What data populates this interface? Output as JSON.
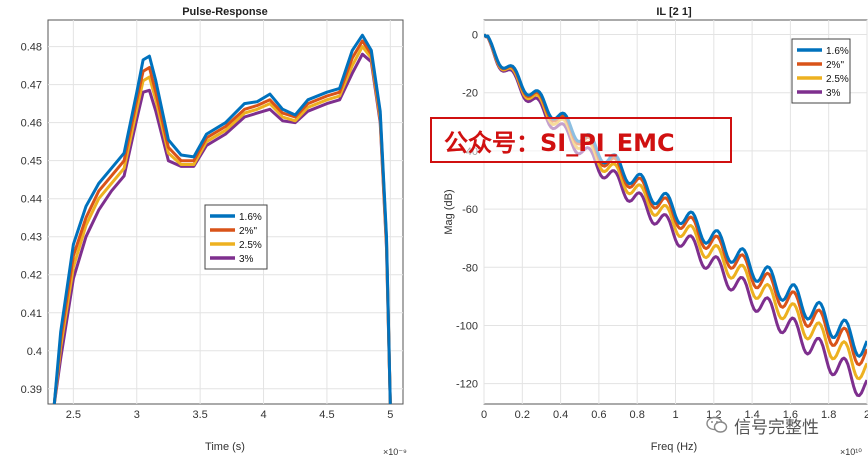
{
  "chart_data": [
    {
      "type": "line",
      "title": "Pulse-Response",
      "xlabel": "Time (s)",
      "ylabel": "",
      "x_exponent": "×10⁻⁹",
      "xlim": [
        2.3,
        5.1
      ],
      "ylim": [
        0.386,
        0.487
      ],
      "xticks": [
        "2.5",
        "3",
        "3.5",
        "4",
        "4.5",
        "5"
      ],
      "yticks": [
        "0.39",
        "0.4",
        "0.41",
        "0.42",
        "0.43",
        "0.44",
        "0.45",
        "0.46",
        "0.47",
        "0.48"
      ],
      "grid": true,
      "legend_position": "center",
      "series": [
        {
          "name": "1.6%",
          "color": "#0072bd",
          "x": [
            2.35,
            2.4,
            2.5,
            2.6,
            2.7,
            2.8,
            2.9,
            3.0,
            3.05,
            3.1,
            3.15,
            3.25,
            3.35,
            3.45,
            3.55,
            3.7,
            3.85,
            3.95,
            4.05,
            4.15,
            4.25,
            4.35,
            4.5,
            4.6,
            4.7,
            4.78,
            4.85,
            4.92,
            4.97,
            5.0
          ],
          "y": [
            0.386,
            0.405,
            0.428,
            0.438,
            0.444,
            0.448,
            0.452,
            0.468,
            0.4765,
            0.4775,
            0.471,
            0.4555,
            0.4515,
            0.451,
            0.457,
            0.46,
            0.465,
            0.4655,
            0.4675,
            0.4635,
            0.462,
            0.466,
            0.468,
            0.469,
            0.479,
            0.483,
            0.479,
            0.463,
            0.43,
            0.386
          ]
        },
        {
          "name": "2%\"",
          "color": "#d95319",
          "x": [
            2.35,
            2.4,
            2.5,
            2.6,
            2.7,
            2.8,
            2.9,
            3.0,
            3.05,
            3.1,
            3.15,
            3.25,
            3.35,
            3.45,
            3.55,
            3.7,
            3.85,
            3.95,
            4.05,
            4.15,
            4.25,
            4.35,
            4.5,
            4.6,
            4.7,
            4.78,
            4.85,
            4.92,
            4.97,
            5.0
          ],
          "y": [
            0.386,
            0.403,
            0.425,
            0.435,
            0.442,
            0.446,
            0.45,
            0.466,
            0.4735,
            0.4745,
            0.468,
            0.4535,
            0.45,
            0.45,
            0.456,
            0.459,
            0.4635,
            0.4645,
            0.466,
            0.4625,
            0.4615,
            0.465,
            0.467,
            0.468,
            0.477,
            0.4815,
            0.478,
            0.462,
            0.429,
            0.386
          ]
        },
        {
          "name": "2.5%",
          "color": "#edb120",
          "x": [
            2.35,
            2.4,
            2.5,
            2.6,
            2.7,
            2.8,
            2.9,
            3.0,
            3.05,
            3.1,
            3.15,
            3.25,
            3.35,
            3.45,
            3.55,
            3.7,
            3.85,
            3.95,
            4.05,
            4.15,
            4.25,
            4.35,
            4.5,
            4.6,
            4.7,
            4.78,
            4.85,
            4.92,
            4.97,
            5.0
          ],
          "y": [
            0.386,
            0.401,
            0.422,
            0.433,
            0.44,
            0.444,
            0.448,
            0.4635,
            0.471,
            0.472,
            0.466,
            0.452,
            0.449,
            0.449,
            0.455,
            0.458,
            0.4625,
            0.4635,
            0.465,
            0.4615,
            0.4605,
            0.464,
            0.466,
            0.467,
            0.475,
            0.48,
            0.477,
            0.461,
            0.428,
            0.386
          ]
        },
        {
          "name": "3%",
          "color": "#7e2f8e",
          "x": [
            2.35,
            2.4,
            2.5,
            2.6,
            2.7,
            2.8,
            2.9,
            3.0,
            3.05,
            3.1,
            3.15,
            3.25,
            3.35,
            3.45,
            3.55,
            3.7,
            3.85,
            3.95,
            4.05,
            4.15,
            4.25,
            4.35,
            4.5,
            4.6,
            4.7,
            4.78,
            4.85,
            4.92,
            4.97,
            5.0
          ],
          "y": [
            0.386,
            0.398,
            0.419,
            0.43,
            0.437,
            0.442,
            0.446,
            0.461,
            0.468,
            0.4685,
            0.463,
            0.45,
            0.4485,
            0.4485,
            0.454,
            0.457,
            0.4615,
            0.4625,
            0.4635,
            0.4605,
            0.46,
            0.463,
            0.465,
            0.466,
            0.473,
            0.478,
            0.476,
            0.46,
            0.427,
            0.386
          ]
        }
      ]
    },
    {
      "type": "line",
      "title": "IL [2 1]",
      "xlabel": "Freq (Hz)",
      "ylabel": "Mag (dB)",
      "x_exponent": "×10¹⁰",
      "xlim": [
        0,
        2
      ],
      "ylim": [
        -127,
        5
      ],
      "xticks": [
        "0",
        "0.2",
        "0.4",
        "0.6",
        "0.8",
        "1",
        "1.2",
        "1.4",
        "1.6",
        "1.8",
        "2"
      ],
      "yticks": [
        "0",
        "-20",
        "-40",
        "-60",
        "-80",
        "-100",
        "-120"
      ],
      "grid": true,
      "legend_position": "top-right",
      "series": [
        {
          "name": "1.6%",
          "color": "#0072bd",
          "end_db": -108,
          "mid_db": -68
        },
        {
          "name": "2%\"",
          "color": "#d95319",
          "end_db": -111,
          "mid_db": -70
        },
        {
          "name": "2.5%",
          "color": "#edb120",
          "end_db": -116,
          "mid_db": -72
        },
        {
          "name": "3%",
          "color": "#7e2f8e",
          "end_db": -122,
          "mid_db": -75
        }
      ]
    }
  ],
  "watermark": {
    "text": "公众号：SI_PI_EMC"
  },
  "brand": {
    "text": "信号完整性",
    "icon": "wechat-icon"
  }
}
